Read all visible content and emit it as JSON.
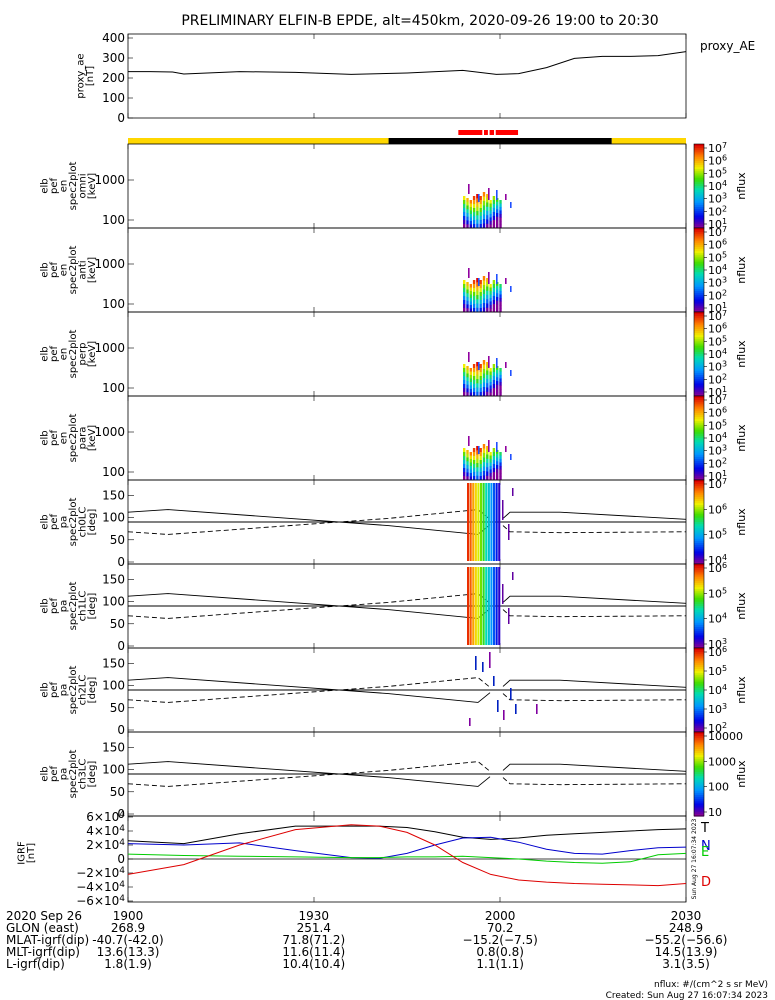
{
  "title": "PRELIMINARY ELFIN-B EPDE, alt=450km, 2020-09-26 19:00 to 20:30",
  "colors": {
    "dayside": "#ffd700",
    "eclipse": "#000000",
    "science_zone": "#ff0000",
    "grf_n": "#0000cc",
    "grf_e": "#00cc00",
    "grf_d": "#dd0000",
    "grf_t": "#000000"
  },
  "orbit_bar": {
    "segments": [
      {
        "start": 0,
        "end": 0.467,
        "color": "#ffd700"
      },
      {
        "start": 0.467,
        "end": 0.867,
        "color": "#000000"
      },
      {
        "start": 0.867,
        "end": 1.0,
        "color": "#ffd700"
      }
    ],
    "science_zones": [
      [
        0.592,
        0.635
      ],
      [
        0.638,
        0.645
      ],
      [
        0.648,
        0.656
      ],
      [
        0.659,
        0.699
      ]
    ]
  },
  "chart_data": [
    {
      "type": "line",
      "ylabel": "proxy_ae\n[nT]",
      "legend": "proxy_AE",
      "yticks": [
        "400",
        "300",
        "200",
        "100",
        "0"
      ],
      "ylim": [
        0,
        420
      ],
      "x": [
        0,
        0.04,
        0.08,
        0.1,
        0.2,
        0.3,
        0.4,
        0.5,
        0.6,
        0.66,
        0.7,
        0.75,
        0.8,
        0.85,
        0.9,
        0.95,
        1.0
      ],
      "values": [
        232,
        232,
        230,
        220,
        232,
        228,
        218,
        225,
        238,
        218,
        222,
        252,
        298,
        308,
        308,
        312,
        332
      ]
    },
    {
      "type": "heatmap",
      "ylabel": "elb\npef\nen\nspec2plot\nomni\n[keV]",
      "yticks": [
        "1000",
        "100"
      ],
      "colorbar": {
        "ticks": [
          "10^7",
          "10^6",
          "10^5",
          "10^4",
          "10^3",
          "10^2",
          "10^1"
        ],
        "label": "nflux"
      }
    },
    {
      "type": "heatmap",
      "ylabel": "elb\npef\nen\nspec2plot\nanti\n[keV]",
      "yticks": [
        "1000",
        "100"
      ],
      "colorbar": {
        "ticks": [
          "10^7",
          "10^6",
          "10^5",
          "10^4",
          "10^3",
          "10^2",
          "10^1"
        ],
        "label": "nflux"
      }
    },
    {
      "type": "heatmap",
      "ylabel": "elb\npef\nen\nspec2plot\nperp\n[keV]",
      "yticks": [
        "1000",
        "100"
      ],
      "colorbar": {
        "ticks": [
          "10^7",
          "10^6",
          "10^5",
          "10^4",
          "10^3",
          "10^2",
          "10^1"
        ],
        "label": "nflux"
      }
    },
    {
      "type": "heatmap",
      "ylabel": "elb\npef\nen\nspec2plot\npara\n[keV]",
      "yticks": [
        "1000",
        "100"
      ],
      "colorbar": {
        "ticks": [
          "10^7",
          "10^6",
          "10^5",
          "10^4",
          "10^3",
          "10^2",
          "10^1"
        ],
        "label": "nflux"
      }
    },
    {
      "type": "heatmap",
      "ylabel": "elb\npef\npa\nspec2plot\nch0LC\n[deg]",
      "yticks": [
        "150",
        "100",
        "50",
        "0"
      ],
      "colorbar": {
        "ticks": [
          "10^7",
          "10^6",
          "10^5",
          "10^4"
        ],
        "label": "nflux"
      }
    },
    {
      "type": "heatmap",
      "ylabel": "elb\npef\npa\nspec2plot\nch1LC\n[deg]",
      "yticks": [
        "150",
        "100",
        "50",
        "0"
      ],
      "colorbar": {
        "ticks": [
          "10^6",
          "10^5",
          "10^4",
          "10^3"
        ],
        "label": "nflux"
      }
    },
    {
      "type": "heatmap",
      "ylabel": "elb\npef\npa\nspec2plot\nch2LC\n[deg]",
      "yticks": [
        "150",
        "100",
        "50",
        "0"
      ],
      "colorbar": {
        "ticks": [
          "10^6",
          "10^5",
          "10^4",
          "10^3",
          "10^2"
        ],
        "label": "nflux"
      }
    },
    {
      "type": "heatmap",
      "ylabel": "elb\npef\npa\nspec2plot\nch3LC\n[deg]",
      "yticks": [
        "150",
        "100",
        "50",
        "0"
      ],
      "colorbar": {
        "ticks": [
          "10000",
          "1000",
          "100",
          "10"
        ],
        "label": "nflux"
      }
    },
    {
      "type": "line",
      "ylabel": "IGRF\n[nT]",
      "yticks": [
        "6×10^4",
        "4×10^4",
        "2×10^4",
        "0",
        "−2×10^4",
        "−4×10^4",
        "−6×10^4"
      ],
      "ylim": [
        -60000,
        60000
      ],
      "legend": [
        "T",
        "N",
        "E",
        "D"
      ],
      "x": [
        0,
        0.1,
        0.2,
        0.3,
        0.4,
        0.45,
        0.5,
        0.55,
        0.6,
        0.65,
        0.7,
        0.75,
        0.8,
        0.85,
        0.9,
        0.95,
        1.0
      ],
      "series": [
        {
          "name": "T",
          "values": [
            26000,
            22000,
            36000,
            47000,
            47000,
            47000,
            45000,
            39000,
            31000,
            28000,
            30000,
            34000,
            36000,
            38000,
            40000,
            42000,
            43000
          ]
        },
        {
          "name": "N",
          "values": [
            22000,
            20000,
            23000,
            12000,
            2000,
            1000,
            8000,
            20000,
            30000,
            31000,
            24000,
            14000,
            8000,
            7000,
            12000,
            16000,
            17000
          ]
        },
        {
          "name": "E",
          "values": [
            7000,
            5000,
            4000,
            3000,
            2000,
            2000,
            3000,
            3000,
            4000,
            2000,
            0,
            -3000,
            -5000,
            -6000,
            -4000,
            6000,
            8000
          ]
        },
        {
          "name": "D",
          "values": [
            -22000,
            -8000,
            20000,
            42000,
            49000,
            47000,
            38000,
            20000,
            -5000,
            -22000,
            -30000,
            -33000,
            -35000,
            -36000,
            -37000,
            -38000,
            -35000
          ]
        }
      ]
    }
  ],
  "sideinfo": "Sun Aug 27 16:07:34 2023",
  "ephemeris": {
    "labels": [
      "2020 Sep 26",
      "GLON (east)",
      "MLAT-igrf(dip)",
      "MLT-igrf(dip)",
      "L-igrf(dip)"
    ],
    "ticks": [
      {
        "x": 0.0,
        "values": [
          "1900",
          "268.9",
          "-40.7(-42.0)",
          "13.6(13.3)",
          "1.8(1.9)"
        ]
      },
      {
        "x": 0.333,
        "values": [
          "1930",
          "251.4",
          "71.8(71.2)",
          "11.6(11.4)",
          "10.4(10.4)"
        ]
      },
      {
        "x": 0.667,
        "values": [
          "2000",
          "70.2",
          "−15.2(−7.5)",
          "0.8(0.8)",
          "1.1(1.1)"
        ]
      },
      {
        "x": 1.0,
        "values": [
          "2030",
          "248.9",
          "−55.2(−56.6)",
          "14.5(13.9)",
          "3.1(3.5)"
        ]
      }
    ]
  },
  "footer": {
    "units": "nflux: #/(cm^2 s sr MeV)",
    "created": "Created: Sun Aug 27 16:07:34 2023"
  }
}
